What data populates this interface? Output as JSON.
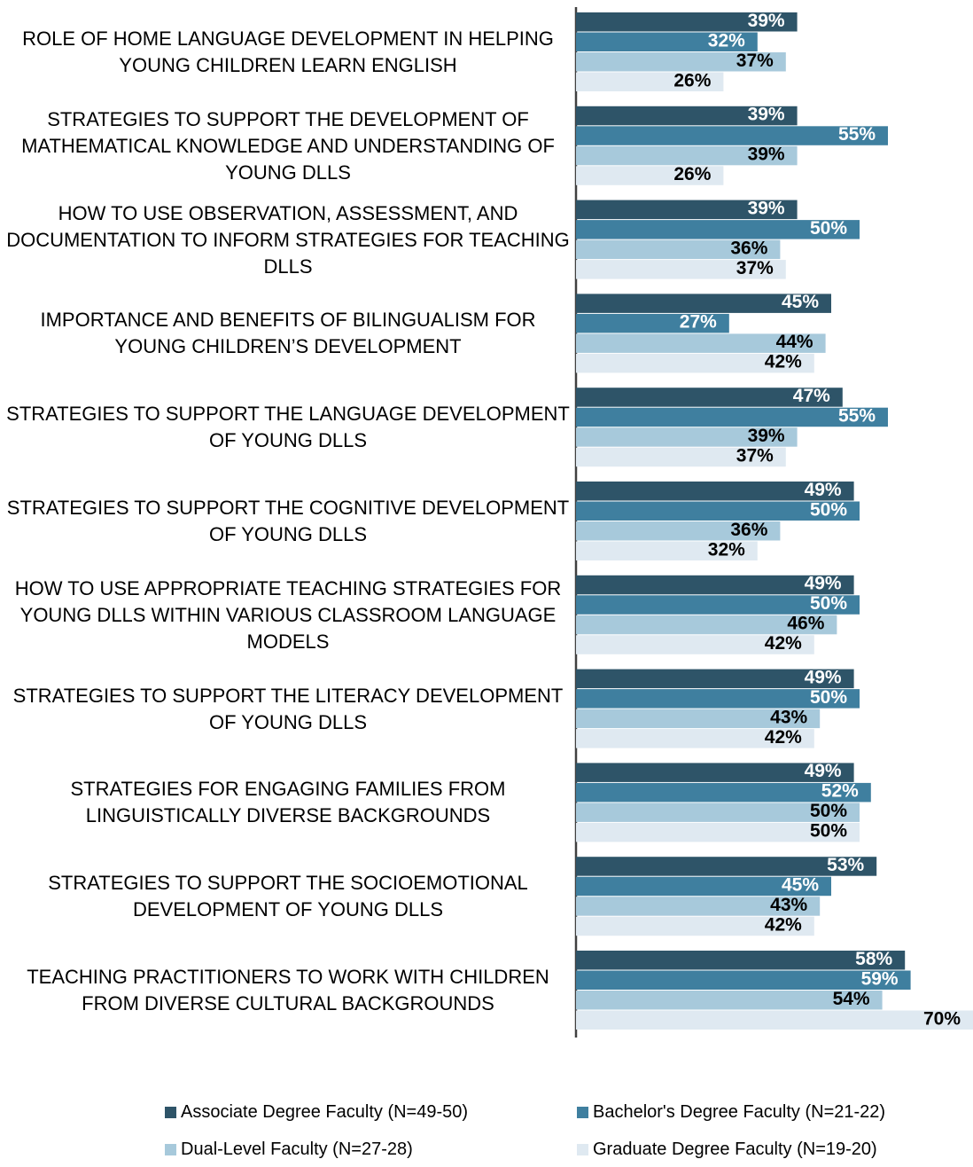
{
  "chart_data": {
    "type": "bar",
    "orientation": "horizontal",
    "categories": [
      "ROLE OF HOME LANGUAGE DEVELOPMENT IN HELPING YOUNG CHILDREN LEARN ENGLISH",
      "STRATEGIES TO SUPPORT THE DEVELOPMENT OF MATHEMATICAL KNOWLEDGE AND UNDERSTANDING OF YOUNG DLLS",
      "HOW TO USE OBSERVATION, ASSESSMENT, AND DOCUMENTATION TO INFORM STRATEGIES FOR TEACHING DLLS",
      "IMPORTANCE AND BENEFITS OF BILINGUALISM FOR YOUNG CHILDREN’S DEVELOPMENT",
      "STRATEGIES TO SUPPORT THE LANGUAGE DEVELOPMENT OF YOUNG DLLS",
      "STRATEGIES TO SUPPORT THE COGNITIVE DEVELOPMENT OF YOUNG DLLS",
      "HOW TO USE APPROPRIATE TEACHING STRATEGIES FOR YOUNG DLLS WITHIN VARIOUS CLASSROOM LANGUAGE MODELS",
      "STRATEGIES TO SUPPORT THE LITERACY DEVELOPMENT OF YOUNG DLLS",
      "STRATEGIES FOR ENGAGING FAMILIES FROM LINGUISTICALLY DIVERSE BACKGROUNDS",
      "STRATEGIES TO SUPPORT THE SOCIOEMOTIONAL DEVELOPMENT OF YOUNG DLLS",
      "TEACHING PRACTITIONERS TO WORK WITH CHILDREN FROM DIVERSE CULTURAL BACKGROUNDS"
    ],
    "series": [
      {
        "name": "Associate Degree Faculty (N=49-50)",
        "color": "#2e5468",
        "label_color": "#ffffff",
        "values": [
          39,
          39,
          39,
          45,
          47,
          49,
          49,
          49,
          49,
          53,
          58
        ],
        "value_labels": [
          "39%",
          "39%",
          "39%",
          "45%",
          "47%",
          "49%",
          "49%",
          "49%",
          "49%",
          "53%",
          "58%"
        ]
      },
      {
        "name": "Bachelor's Degree Faculty (N=21-22)",
        "color": "#3f7f9f",
        "label_color": "#ffffff",
        "values": [
          32,
          55,
          50,
          27,
          55,
          50,
          50,
          50,
          52,
          45,
          59
        ],
        "value_labels": [
          "32%",
          "55%",
          "50%",
          "27%",
          "55%",
          "50%",
          "50%",
          "50%",
          "52%",
          "45%",
          "59%"
        ]
      },
      {
        "name": "Dual-Level Faculty (N=27-28)",
        "color": "#a7c9db",
        "label_color": "#000000",
        "values": [
          37,
          39,
          36,
          44,
          39,
          36,
          46,
          43,
          50,
          43,
          54
        ],
        "value_labels": [
          "37%",
          "39%",
          "36%",
          "44%",
          "39%",
          "36%",
          "46%",
          "43%",
          "50%",
          "43%",
          "54%"
        ]
      },
      {
        "name": "Graduate Degree Faculty (N=19-20)",
        "color": "#dfe9f1",
        "label_color": "#000000",
        "values": [
          26,
          26,
          37,
          42,
          37,
          32,
          42,
          42,
          50,
          42,
          70
        ],
        "value_labels": [
          "26%",
          "26%",
          "37%",
          "42%",
          "37%",
          "32%",
          "42%",
          "42%",
          "50%",
          "42%",
          "70%"
        ]
      }
    ]
  }
}
